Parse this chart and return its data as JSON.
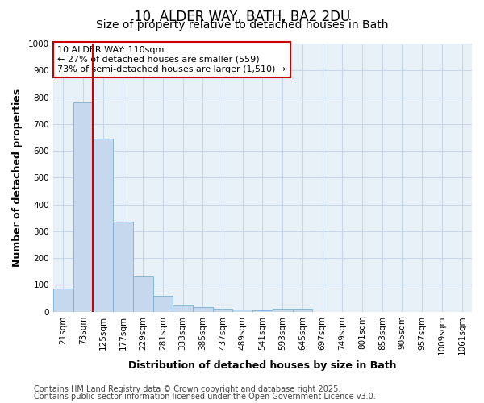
{
  "title1": "10, ALDER WAY, BATH, BA2 2DU",
  "title2": "Size of property relative to detached houses in Bath",
  "xlabel": "Distribution of detached houses by size in Bath",
  "ylabel": "Number of detached properties",
  "categories": [
    "21sqm",
    "73sqm",
    "125sqm",
    "177sqm",
    "229sqm",
    "281sqm",
    "333sqm",
    "385sqm",
    "437sqm",
    "489sqm",
    "541sqm",
    "593sqm",
    "645sqm",
    "697sqm",
    "749sqm",
    "801sqm",
    "853sqm",
    "905sqm",
    "957sqm",
    "1009sqm",
    "1061sqm"
  ],
  "values": [
    85,
    780,
    645,
    335,
    132,
    58,
    24,
    18,
    10,
    7,
    5,
    10,
    10,
    0,
    0,
    0,
    0,
    0,
    0,
    0,
    0
  ],
  "bar_color": "#c5d8ed",
  "bar_edge_color": "#7bafd4",
  "vline_color": "#cc0000",
  "annotation_text": "10 ALDER WAY: 110sqm\n← 27% of detached houses are smaller (559)\n73% of semi-detached houses are larger (1,510) →",
  "annotation_box_facecolor": "#ffffff",
  "annotation_box_edgecolor": "#cc0000",
  "ylim": [
    0,
    1000
  ],
  "yticks": [
    0,
    100,
    200,
    300,
    400,
    500,
    600,
    700,
    800,
    900,
    1000
  ],
  "grid_color": "#c8d8e8",
  "bg_color": "#ffffff",
  "plot_bg_color": "#e8f0f8",
  "footer1": "Contains HM Land Registry data © Crown copyright and database right 2025.",
  "footer2": "Contains public sector information licensed under the Open Government Licence v3.0.",
  "title_fontsize": 12,
  "subtitle_fontsize": 10,
  "axis_label_fontsize": 9,
  "tick_fontsize": 7.5,
  "annotation_fontsize": 8,
  "footer_fontsize": 7
}
